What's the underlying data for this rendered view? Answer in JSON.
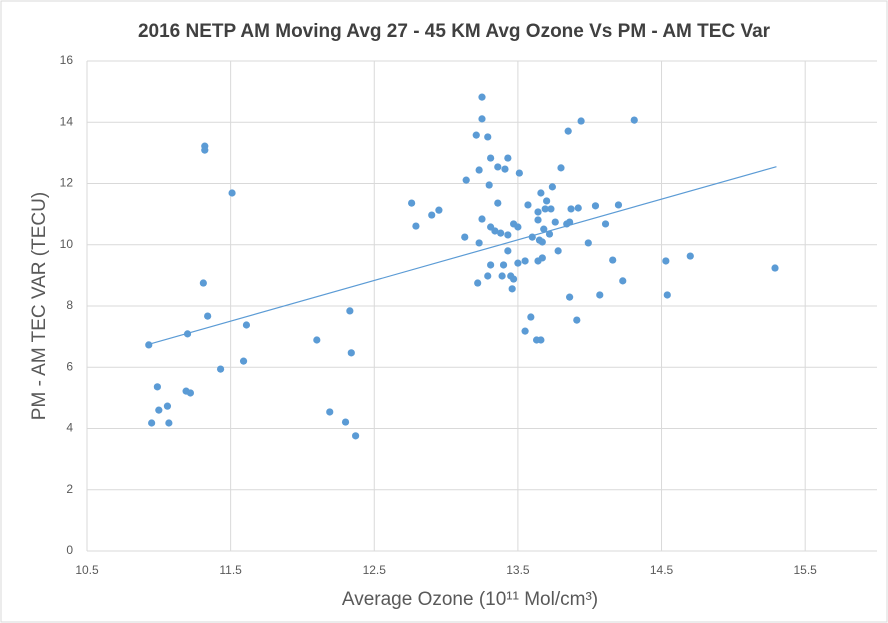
{
  "chart_data": {
    "type": "scatter",
    "title": "2016 NETP AM Moving Avg 27 - 45 KM Avg Ozone Vs PM - AM TEC Var",
    "x_label": "Average Ozone (10¹¹ Mol/cm³)",
    "y_label": "PM - AM TEC VAR (TECU)",
    "color": "#5b9bd5",
    "grid": true,
    "xlim": [
      10.5,
      16
    ],
    "xticks": [
      10.5,
      11.5,
      12.5,
      13.5,
      14.5,
      15.5
    ],
    "ylim": [
      0,
      16
    ],
    "yticks": [
      0,
      2,
      4,
      6,
      8,
      10,
      12,
      14,
      16
    ],
    "x": [
      10.93,
      10.95,
      10.99,
      11.0,
      11.06,
      11.07,
      11.19,
      11.22,
      11.2,
      11.31,
      11.32,
      11.32,
      11.34,
      11.43,
      11.51,
      11.59,
      11.61,
      12.1,
      12.19,
      12.3,
      12.33,
      12.34,
      12.37,
      12.76,
      12.79,
      12.9,
      12.95,
      13.13,
      13.14,
      13.21,
      13.22,
      13.23,
      13.23,
      13.25,
      13.25,
      13.25,
      13.29,
      13.29,
      13.3,
      13.31,
      13.31,
      13.31,
      13.34,
      13.36,
      13.36,
      13.38,
      13.39,
      13.4,
      13.41,
      13.43,
      13.43,
      13.43,
      13.45,
      13.46,
      13.47,
      13.47,
      13.5,
      13.5,
      13.51,
      13.55,
      13.55,
      13.57,
      13.59,
      13.6,
      13.63,
      13.64,
      13.64,
      13.64,
      13.65,
      13.66,
      13.66,
      13.67,
      13.67,
      13.68,
      13.69,
      13.7,
      13.72,
      13.73,
      13.74,
      13.76,
      13.78,
      13.8,
      13.84,
      13.85,
      13.86,
      13.86,
      13.87,
      13.91,
      13.92,
      13.94,
      13.99,
      14.04,
      14.07,
      14.11,
      14.16,
      14.2,
      14.23,
      14.31,
      14.53,
      14.54,
      14.7,
      15.29
    ],
    "values": [
      6.73,
      4.18,
      5.36,
      4.6,
      4.73,
      4.18,
      5.22,
      5.16,
      7.09,
      8.75,
      13.22,
      13.09,
      7.67,
      5.94,
      11.69,
      6.2,
      7.38,
      6.89,
      4.54,
      4.21,
      7.84,
      6.47,
      3.76,
      11.36,
      10.61,
      10.97,
      11.13,
      10.25,
      12.11,
      13.58,
      8.75,
      12.44,
      10.06,
      10.84,
      14.11,
      14.82,
      13.52,
      8.98,
      11.95,
      12.83,
      9.34,
      10.58,
      10.45,
      11.36,
      12.54,
      10.38,
      8.98,
      9.34,
      12.47,
      12.83,
      9.8,
      10.32,
      8.98,
      8.56,
      8.88,
      10.68,
      9.4,
      10.58,
      12.34,
      9.47,
      7.18,
      11.3,
      7.64,
      10.25,
      6.89,
      10.81,
      9.47,
      11.07,
      10.15,
      6.89,
      11.69,
      10.09,
      9.57,
      10.51,
      11.17,
      11.43,
      10.35,
      11.17,
      11.89,
      10.74,
      9.8,
      12.51,
      10.68,
      13.71,
      10.74,
      8.29,
      11.17,
      7.54,
      11.2,
      14.04,
      10.06,
      11.27,
      8.36,
      10.68,
      9.5,
      11.3,
      8.82,
      14.07,
      9.47,
      8.36,
      9.63,
      9.24
    ],
    "trendline": {
      "x": [
        10.93,
        15.3
      ],
      "values": [
        6.75,
        12.55
      ]
    }
  }
}
